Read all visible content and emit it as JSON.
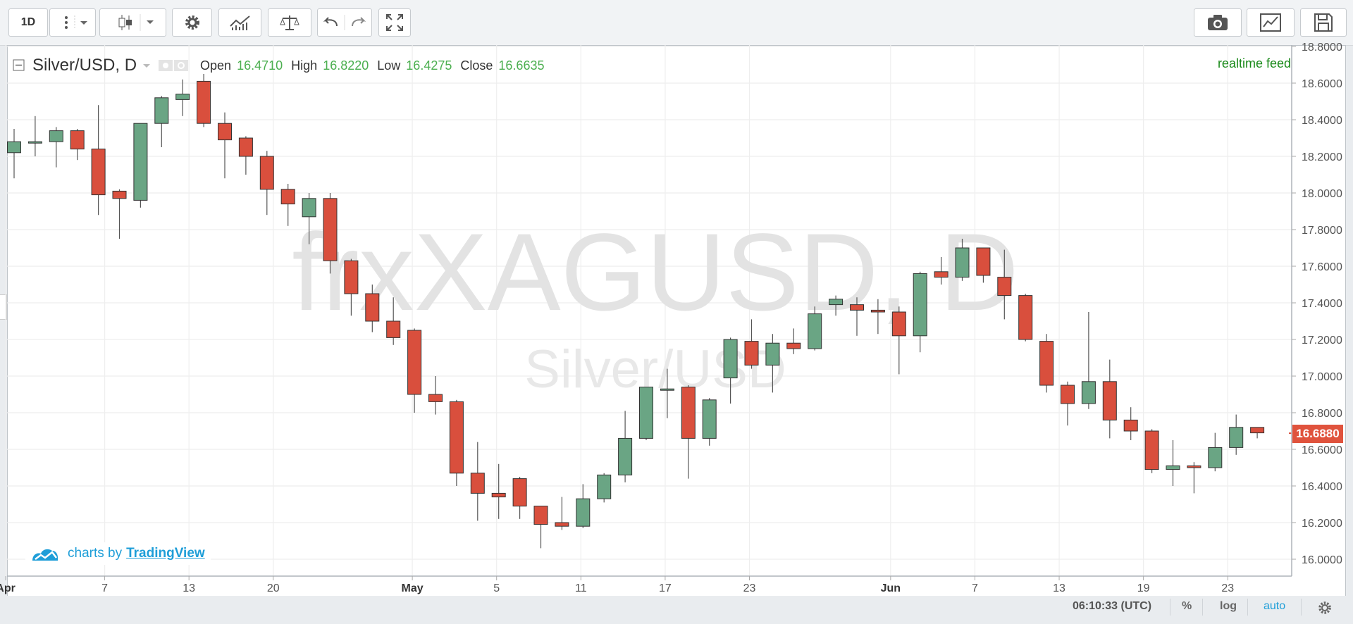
{
  "toolbar": {
    "interval_label": "1D",
    "chart_type_icon": "candlestick-icon",
    "settings_icon": "gear-icon",
    "indicators_icon": "indicators-icon",
    "compare_icon": "scales-icon",
    "undo_icon": "undo-icon",
    "redo_icon": "redo-icon",
    "fullscreen_icon": "fullscreen-icon",
    "snapshot_icon": "camera-icon",
    "chart_icon": "chart-icon",
    "save_icon": "save-icon"
  },
  "legend": {
    "symbol": "Silver/USD, D",
    "open_label": "Open",
    "open_value": "16.4710",
    "high_label": "High",
    "high_value": "16.8220",
    "low_label": "Low",
    "low_value": "16.4275",
    "close_label": "Close",
    "close_value": "16.6635"
  },
  "realtime_label": "realtime feed",
  "watermark": {
    "ticker": "frxXAGUSD, D",
    "name": "Silver/USD"
  },
  "branding": {
    "prefix": "charts by",
    "name": "TradingView"
  },
  "last_price": "16.6880",
  "bottom_bar": {
    "time": "06:10:33 (UTC)",
    "percent": "%",
    "log": "log",
    "auto": "auto",
    "settings_icon": "gear-icon"
  },
  "colors": {
    "up": "#6aa584",
    "down": "#d94f3d",
    "accent": "#1e9ed8"
  },
  "chart_data": {
    "type": "candlestick",
    "title": "Silver/USD, D",
    "ylim": [
      15.9,
      18.8
    ],
    "y_ticks": [
      16.0,
      16.2,
      16.4,
      16.6,
      16.8,
      17.0,
      17.2,
      17.4,
      17.6,
      17.8,
      18.0,
      18.2,
      18.4,
      18.6,
      18.8
    ],
    "x_tick_labels": [
      "Apr",
      "7",
      "13",
      "20",
      "May",
      "5",
      "11",
      "17",
      "23",
      "Jun",
      "7",
      "13",
      "19",
      "23"
    ],
    "grid": true,
    "candles": [
      {
        "o": 18.22,
        "h": 18.35,
        "l": 18.08,
        "c": 18.28
      },
      {
        "o": 18.28,
        "h": 18.42,
        "l": 18.2,
        "c": 18.28
      },
      {
        "o": 18.28,
        "h": 18.36,
        "l": 18.14,
        "c": 18.34
      },
      {
        "o": 18.34,
        "h": 18.35,
        "l": 18.18,
        "c": 18.24
      },
      {
        "o": 18.24,
        "h": 18.48,
        "l": 17.88,
        "c": 17.99
      },
      {
        "o": 18.01,
        "h": 18.02,
        "l": 17.75,
        "c": 17.97
      },
      {
        "o": 17.96,
        "h": 18.38,
        "l": 17.92,
        "c": 18.38
      },
      {
        "o": 18.38,
        "h": 18.53,
        "l": 18.25,
        "c": 18.52
      },
      {
        "o": 18.51,
        "h": 18.62,
        "l": 18.42,
        "c": 18.54
      },
      {
        "o": 18.61,
        "h": 18.65,
        "l": 18.36,
        "c": 18.38
      },
      {
        "o": 18.38,
        "h": 18.44,
        "l": 18.08,
        "c": 18.29
      },
      {
        "o": 18.3,
        "h": 18.31,
        "l": 18.1,
        "c": 18.2
      },
      {
        "o": 18.2,
        "h": 18.23,
        "l": 17.88,
        "c": 18.02
      },
      {
        "o": 18.02,
        "h": 18.05,
        "l": 17.82,
        "c": 17.94
      },
      {
        "o": 17.87,
        "h": 18.0,
        "l": 17.72,
        "c": 17.97
      },
      {
        "o": 17.97,
        "h": 18.0,
        "l": 17.56,
        "c": 17.63
      },
      {
        "o": 17.63,
        "h": 17.64,
        "l": 17.33,
        "c": 17.45
      },
      {
        "o": 17.45,
        "h": 17.5,
        "l": 17.24,
        "c": 17.3
      },
      {
        "o": 17.3,
        "h": 17.43,
        "l": 17.17,
        "c": 17.21
      },
      {
        "o": 17.25,
        "h": 17.26,
        "l": 16.8,
        "c": 16.9
      },
      {
        "o": 16.9,
        "h": 17.0,
        "l": 16.79,
        "c": 16.86
      },
      {
        "o": 16.86,
        "h": 16.87,
        "l": 16.4,
        "c": 16.47
      },
      {
        "o": 16.47,
        "h": 16.64,
        "l": 16.21,
        "c": 16.36
      },
      {
        "o": 16.36,
        "h": 16.52,
        "l": 16.22,
        "c": 16.34
      },
      {
        "o": 16.44,
        "h": 16.45,
        "l": 16.22,
        "c": 16.29
      },
      {
        "o": 16.29,
        "h": 16.29,
        "l": 16.06,
        "c": 16.19
      },
      {
        "o": 16.2,
        "h": 16.34,
        "l": 16.16,
        "c": 16.18
      },
      {
        "o": 16.18,
        "h": 16.41,
        "l": 16.17,
        "c": 16.33
      },
      {
        "o": 16.33,
        "h": 16.47,
        "l": 16.31,
        "c": 16.46
      },
      {
        "o": 16.46,
        "h": 16.81,
        "l": 16.42,
        "c": 16.66
      },
      {
        "o": 16.66,
        "h": 16.94,
        "l": 16.65,
        "c": 16.94
      },
      {
        "o": 16.93,
        "h": 17.04,
        "l": 16.77,
        "c": 16.93
      },
      {
        "o": 16.94,
        "h": 16.95,
        "l": 16.44,
        "c": 16.66
      },
      {
        "o": 16.66,
        "h": 16.88,
        "l": 16.62,
        "c": 16.87
      },
      {
        "o": 16.99,
        "h": 17.21,
        "l": 16.85,
        "c": 17.2
      },
      {
        "o": 17.19,
        "h": 17.31,
        "l": 17.04,
        "c": 17.06
      },
      {
        "o": 17.06,
        "h": 17.23,
        "l": 16.91,
        "c": 17.18
      },
      {
        "o": 17.18,
        "h": 17.26,
        "l": 17.12,
        "c": 17.15
      },
      {
        "o": 17.15,
        "h": 17.38,
        "l": 17.14,
        "c": 17.34
      },
      {
        "o": 17.39,
        "h": 17.44,
        "l": 17.33,
        "c": 17.42
      },
      {
        "o": 17.39,
        "h": 17.43,
        "l": 17.22,
        "c": 17.36
      },
      {
        "o": 17.36,
        "h": 17.42,
        "l": 17.23,
        "c": 17.35
      },
      {
        "o": 17.35,
        "h": 17.38,
        "l": 17.01,
        "c": 17.22
      },
      {
        "o": 17.22,
        "h": 17.57,
        "l": 17.13,
        "c": 17.56
      },
      {
        "o": 17.57,
        "h": 17.65,
        "l": 17.5,
        "c": 17.54
      },
      {
        "o": 17.54,
        "h": 17.75,
        "l": 17.52,
        "c": 17.7
      },
      {
        "o": 17.7,
        "h": 17.7,
        "l": 17.51,
        "c": 17.55
      },
      {
        "o": 17.54,
        "h": 17.69,
        "l": 17.31,
        "c": 17.44
      },
      {
        "o": 17.44,
        "h": 17.45,
        "l": 17.19,
        "c": 17.2
      },
      {
        "o": 17.19,
        "h": 17.23,
        "l": 16.91,
        "c": 16.95
      },
      {
        "o": 16.95,
        "h": 16.97,
        "l": 16.73,
        "c": 16.85
      },
      {
        "o": 16.85,
        "h": 17.35,
        "l": 16.82,
        "c": 16.97
      },
      {
        "o": 16.97,
        "h": 17.09,
        "l": 16.66,
        "c": 16.76
      },
      {
        "o": 16.76,
        "h": 16.83,
        "l": 16.65,
        "c": 16.7
      },
      {
        "o": 16.7,
        "h": 16.71,
        "l": 16.47,
        "c": 16.49
      },
      {
        "o": 16.49,
        "h": 16.65,
        "l": 16.4,
        "c": 16.51
      },
      {
        "o": 16.51,
        "h": 16.53,
        "l": 16.36,
        "c": 16.5
      },
      {
        "o": 16.5,
        "h": 16.69,
        "l": 16.48,
        "c": 16.61
      },
      {
        "o": 16.61,
        "h": 16.79,
        "l": 16.57,
        "c": 16.72
      },
      {
        "o": 16.72,
        "h": 16.72,
        "l": 16.66,
        "c": 16.69
      }
    ]
  }
}
